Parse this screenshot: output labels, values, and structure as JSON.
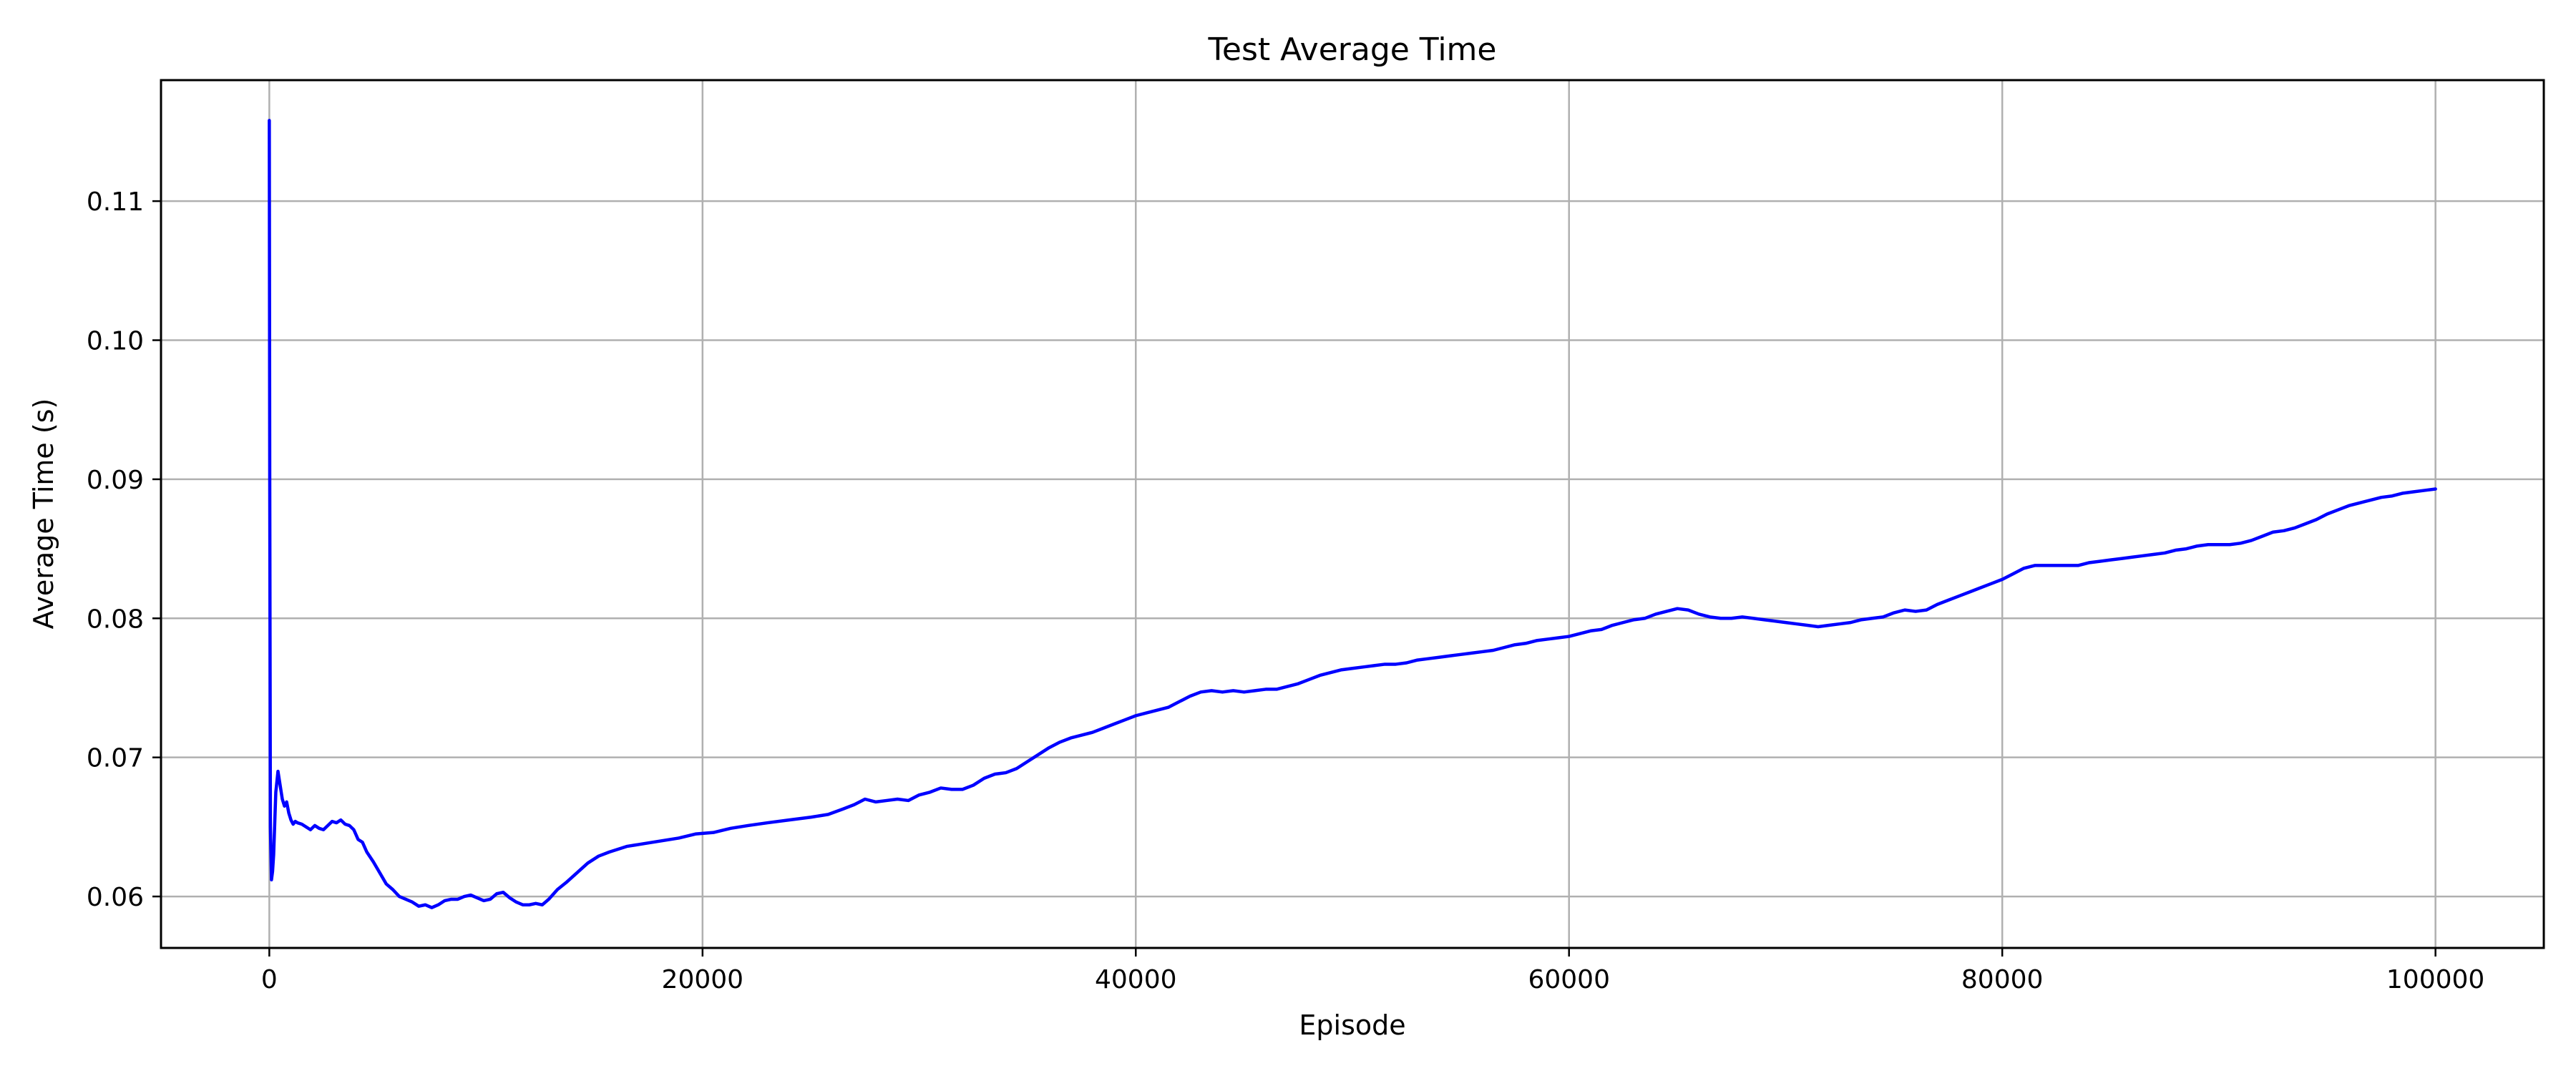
{
  "chart_data": {
    "type": "line",
    "title": "Test Average Time",
    "xlabel": "Episode",
    "ylabel": "Average Time (s)",
    "xlim": [
      -5000,
      105000
    ],
    "ylim": [
      0.0563,
      0.1187
    ],
    "xticks": [
      0,
      20000,
      40000,
      60000,
      80000,
      100000
    ],
    "xtick_labels": [
      "0",
      "20000",
      "40000",
      "60000",
      "80000",
      "100000"
    ],
    "yticks": [
      0.06,
      0.07,
      0.08,
      0.09,
      0.1,
      0.11
    ],
    "ytick_labels": [
      "0.06",
      "0.07",
      "0.08",
      "0.09",
      "0.10",
      "0.11"
    ],
    "grid": true,
    "legend": "none",
    "line_color": "#0000ff",
    "grid_color": "#b0b0b0",
    "series": [
      {
        "x": [
          0,
          20,
          50,
          100,
          150,
          200,
          300,
          400,
          500,
          600,
          700,
          800,
          900,
          1000,
          1100,
          1200,
          1300,
          1500,
          1700,
          1900,
          2100,
          2300,
          2500,
          2700,
          2900,
          3100,
          3300,
          3500,
          3700,
          3900,
          4100,
          4300,
          4500,
          4800,
          5100,
          5400,
          5700,
          6000,
          6300,
          6600,
          6900,
          7200,
          7500,
          7800,
          8100,
          8400,
          8700,
          9000,
          9300,
          9600,
          9900,
          10200,
          10500,
          10800,
          11100,
          11400,
          11700,
          12000,
          12300,
          12600,
          12900,
          13300,
          13700,
          14200,
          14700,
          15200,
          15700,
          16500,
          17300,
          18100,
          18900,
          19700,
          20500,
          21300,
          22100,
          23000,
          24000,
          25000,
          25800,
          26500,
          27000,
          27500,
          28000,
          28500,
          29000,
          29500,
          30000,
          30500,
          31000,
          31500,
          32000,
          32500,
          33000,
          33500,
          34000,
          34500,
          35000,
          35500,
          36000,
          36500,
          37000,
          37500,
          38000,
          38500,
          39000,
          39500,
          40000,
          40500,
          41000,
          41500,
          42000,
          42500,
          43000,
          43500,
          44000,
          44500,
          45000,
          45500,
          46000,
          46500,
          47000,
          47500,
          48000,
          48500,
          49000,
          49500,
          50000,
          50500,
          51000,
          51500,
          52000,
          52500,
          53000,
          53500,
          54000,
          54500,
          55000,
          55500,
          56000,
          56500,
          57000,
          57500,
          58000,
          58500,
          59000,
          59500,
          60000,
          60500,
          61000,
          61500,
          62000,
          62500,
          63000,
          63500,
          64000,
          64500,
          65000,
          65500,
          66000,
          66500,
          67000,
          67500,
          68000,
          68500,
          69000,
          69500,
          70000,
          70500,
          71000,
          71500,
          72000,
          72500,
          73000,
          73500,
          74000,
          74500,
          75000,
          75500,
          76000,
          76500,
          77000,
          77500,
          78000,
          78500,
          79000,
          79500,
          80000,
          80500,
          81000,
          81500,
          82000,
          82500,
          83000,
          83500,
          84000,
          84500,
          85000,
          85500,
          86000,
          86500,
          87000,
          87500,
          88000,
          88500,
          89000,
          89500,
          90000,
          90500,
          91000,
          91500,
          92000,
          92500,
          93000,
          93500,
          94000,
          94500,
          95000,
          95500,
          96000,
          96500,
          97000,
          97500,
          98000,
          98500,
          99000,
          99500,
          100000
        ],
        "y": [
          0.1158,
          0.09,
          0.065,
          0.0612,
          0.0618,
          0.063,
          0.0675,
          0.069,
          0.068,
          0.067,
          0.0665,
          0.0668,
          0.066,
          0.0655,
          0.0652,
          0.0654,
          0.0653,
          0.0652,
          0.065,
          0.0648,
          0.0651,
          0.0649,
          0.0648,
          0.0651,
          0.0654,
          0.0653,
          0.0655,
          0.0652,
          0.0651,
          0.0648,
          0.0641,
          0.0639,
          0.0632,
          0.0625,
          0.0617,
          0.0609,
          0.0605,
          0.06,
          0.0598,
          0.0596,
          0.0593,
          0.0594,
          0.0592,
          0.0594,
          0.0597,
          0.0598,
          0.0598,
          0.06,
          0.0601,
          0.0599,
          0.0597,
          0.0598,
          0.0602,
          0.0603,
          0.0599,
          0.0596,
          0.0594,
          0.0594,
          0.0595,
          0.0594,
          0.0598,
          0.0605,
          0.061,
          0.0617,
          0.0624,
          0.0629,
          0.0632,
          0.0636,
          0.0638,
          0.064,
          0.0642,
          0.0645,
          0.0646,
          0.0649,
          0.0651,
          0.0653,
          0.0655,
          0.0657,
          0.0659,
          0.0663,
          0.0666,
          0.067,
          0.0668,
          0.0669,
          0.067,
          0.0669,
          0.0673,
          0.0675,
          0.0678,
          0.0677,
          0.0677,
          0.068,
          0.0685,
          0.0688,
          0.0689,
          0.0692,
          0.0697,
          0.0702,
          0.0707,
          0.0711,
          0.0714,
          0.0716,
          0.0718,
          0.0721,
          0.0724,
          0.0727,
          0.073,
          0.0732,
          0.0734,
          0.0736,
          0.074,
          0.0744,
          0.0747,
          0.0748,
          0.0747,
          0.0748,
          0.0747,
          0.0748,
          0.0749,
          0.0749,
          0.0751,
          0.0753,
          0.0756,
          0.0759,
          0.0761,
          0.0763,
          0.0764,
          0.0765,
          0.0766,
          0.0767,
          0.0767,
          0.0768,
          0.077,
          0.0771,
          0.0772,
          0.0773,
          0.0774,
          0.0775,
          0.0776,
          0.0777,
          0.0779,
          0.0781,
          0.0782,
          0.0784,
          0.0785,
          0.0786,
          0.0787,
          0.0789,
          0.0791,
          0.0792,
          0.0795,
          0.0797,
          0.0799,
          0.08,
          0.0803,
          0.0805,
          0.0807,
          0.0806,
          0.0803,
          0.0801,
          0.08,
          0.08,
          0.0801,
          0.08,
          0.0799,
          0.0798,
          0.0797,
          0.0796,
          0.0795,
          0.0794,
          0.0795,
          0.0796,
          0.0797,
          0.0799,
          0.08,
          0.0801,
          0.0804,
          0.0806,
          0.0805,
          0.0806,
          0.081,
          0.0813,
          0.0816,
          0.0819,
          0.0822,
          0.0825,
          0.0828,
          0.0832,
          0.0836,
          0.0838,
          0.0838,
          0.0838,
          0.0838,
          0.0838,
          0.084,
          0.0841,
          0.0842,
          0.0843,
          0.0844,
          0.0845,
          0.0846,
          0.0847,
          0.0849,
          0.085,
          0.0852,
          0.0853,
          0.0853,
          0.0853,
          0.0854,
          0.0856,
          0.0859,
          0.0862,
          0.0863,
          0.0865,
          0.0868,
          0.0871,
          0.0875,
          0.0878,
          0.0881,
          0.0883,
          0.0885,
          0.0887,
          0.0888,
          0.089,
          0.0891,
          0.0892,
          0.0893
        ]
      }
    ]
  }
}
